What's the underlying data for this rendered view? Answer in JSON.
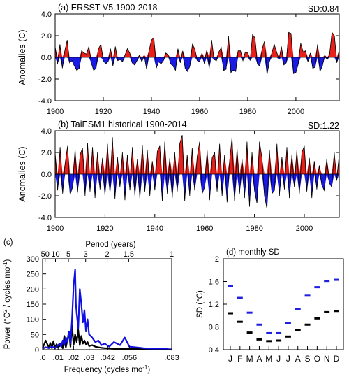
{
  "chart_data": [
    {
      "type": "area",
      "panel": "(a) ERSST-V5 1900-2018",
      "title": "(a) ERSST-V5 1900-2018",
      "sd_label": "SD:0.84",
      "ylabel": "Anomalies (C)",
      "xlim": [
        1900,
        2018
      ],
      "ylim": [
        -4.0,
        4.0
      ],
      "xticks": [
        "1900",
        "1920",
        "1940",
        "1960",
        "1980",
        "2000"
      ],
      "yticks": [
        "-4.0",
        "-2.0",
        "0.0",
        "2.0",
        "4.0"
      ],
      "series": [
        {
          "x": [
            1900,
            1901,
            1902,
            1903,
            1904,
            1905,
            1906,
            1907,
            1908,
            1909,
            1910,
            1911,
            1912,
            1913,
            1914,
            1915,
            1916,
            1917,
            1918,
            1919,
            1920,
            1921,
            1922,
            1923,
            1924,
            1925,
            1926,
            1927,
            1928,
            1929,
            1930,
            1931,
            1932,
            1933,
            1934,
            1935,
            1936,
            1937,
            1938,
            1939,
            1940,
            1941,
            1942,
            1943,
            1944,
            1945,
            1946,
            1947,
            1948,
            1949,
            1950,
            1951,
            1952,
            1953,
            1954,
            1955,
            1956,
            1957,
            1958,
            1959,
            1960,
            1961,
            1962,
            1963,
            1964,
            1965,
            1966,
            1967,
            1968,
            1969,
            1970,
            1971,
            1972,
            1973,
            1974,
            1975,
            1976,
            1977,
            1978,
            1979,
            1980,
            1981,
            1982,
            1983,
            1984,
            1985,
            1986,
            1987,
            1988,
            1989,
            1990,
            1991,
            1992,
            1993,
            1994,
            1995,
            1996,
            1997,
            1998,
            1999,
            2000,
            2001,
            2002,
            2003,
            2004,
            2005,
            2006,
            2007,
            2008,
            2009,
            2010,
            2011,
            2012,
            2013,
            2014,
            2015,
            2016,
            2017,
            2018
          ],
          "values": [
            1.0,
            -0.6,
            1.2,
            -1.0,
            0.6,
            1.6,
            -0.5,
            -0.3,
            -0.8,
            -1.2,
            -1.0,
            0.6,
            0.4,
            0.3,
            1.0,
            -0.5,
            -1.2,
            -1.0,
            0.8,
            1.2,
            -0.3,
            -0.6,
            -0.4,
            0.8,
            -0.8,
            1.0,
            -0.3,
            -0.2,
            -0.4,
            0.2,
            0.8,
            0.4,
            -0.5,
            -0.7,
            -0.3,
            0.2,
            -0.4,
            0.2,
            -1.1,
            0.6,
            1.6,
            1.8,
            -1.0,
            -0.4,
            -0.6,
            -0.3,
            0.4,
            0.2,
            -0.6,
            -0.8,
            -1.2,
            0.8,
            -0.5,
            0.6,
            -1.0,
            -1.3,
            -0.8,
            1.2,
            0.8,
            -0.3,
            -0.4,
            0.4,
            -0.6,
            0.7,
            -1.0,
            1.6,
            -0.2,
            -0.3,
            0.5,
            0.9,
            -1.2,
            -1.1,
            2.0,
            -1.4,
            -1.2,
            -1.3,
            0.6,
            0.6,
            -0.3,
            0.5,
            0.4,
            -0.3,
            2.1,
            1.8,
            -0.6,
            -0.8,
            0.8,
            1.5,
            -1.6,
            -0.4,
            0.4,
            1.2,
            0.5,
            -0.2,
            1.0,
            -0.7,
            -0.5,
            2.3,
            2.2,
            -1.5,
            -1.4,
            -0.6,
            1.3,
            0.5,
            0.6,
            -0.4,
            0.4,
            -1.0,
            -0.9,
            1.2,
            -1.3,
            -0.8,
            0.2,
            -0.2,
            0.3,
            2.3,
            2.0,
            -0.5,
            0.7
          ]
        }
      ]
    },
    {
      "type": "area",
      "panel": "(b) TaiESM1 historical 1900-2014",
      "title": "(b) TaiESM1 historical 1900-2014",
      "sd_label": "SD:1.22",
      "ylabel": "Anomalies (C)",
      "xlim": [
        1900,
        2014
      ],
      "ylim": [
        -4.0,
        4.0
      ],
      "xticks": [
        "1900",
        "1920",
        "1940",
        "1960",
        "1980",
        "2000"
      ],
      "yticks": [
        "-4.0",
        "-2.0",
        "0.0",
        "2.0",
        "4.0"
      ],
      "series": [
        {
          "x": [
            1900,
            1901,
            1902,
            1903,
            1904,
            1905,
            1906,
            1907,
            1908,
            1909,
            1910,
            1911,
            1912,
            1913,
            1914,
            1915,
            1916,
            1917,
            1918,
            1919,
            1920,
            1921,
            1922,
            1923,
            1924,
            1925,
            1926,
            1927,
            1928,
            1929,
            1930,
            1931,
            1932,
            1933,
            1934,
            1935,
            1936,
            1937,
            1938,
            1939,
            1940,
            1941,
            1942,
            1943,
            1944,
            1945,
            1946,
            1947,
            1948,
            1949,
            1950,
            1951,
            1952,
            1953,
            1954,
            1955,
            1956,
            1957,
            1958,
            1959,
            1960,
            1961,
            1962,
            1963,
            1964,
            1965,
            1966,
            1967,
            1968,
            1969,
            1970,
            1971,
            1972,
            1973,
            1974,
            1975,
            1976,
            1977,
            1978,
            1979,
            1980,
            1981,
            1982,
            1983,
            1984,
            1985,
            1986,
            1987,
            1988,
            1989,
            1990,
            1991,
            1992,
            1993,
            1994,
            1995,
            1996,
            1997,
            1998,
            1999,
            2000,
            2001,
            2002,
            2003,
            2004,
            2005,
            2006,
            2007,
            2008,
            2009,
            2010,
            2011,
            2012,
            2013,
            2014
          ],
          "values": [
            2.0,
            -1.5,
            2.5,
            -1.8,
            1.0,
            2.6,
            -1.9,
            -1.2,
            2.3,
            -1.7,
            1.8,
            2.4,
            -2.0,
            2.9,
            -1.6,
            2.5,
            -2.2,
            2.0,
            -1.4,
            1.5,
            -2.0,
            2.8,
            -1.8,
            3.4,
            -2.3,
            1.6,
            -1.2,
            2.0,
            -2.4,
            1.8,
            -1.5,
            2.5,
            -2.0,
            1.4,
            -2.3,
            2.7,
            -1.6,
            2.2,
            -2.0,
            1.2,
            -1.5,
            2.1,
            2.6,
            -2.5,
            3.0,
            -1.8,
            1.5,
            -2.2,
            2.0,
            -1.6,
            2.8,
            3.6,
            -2.5,
            1.8,
            -2.0,
            2.4,
            -1.5,
            1.6,
            3.0,
            -1.8,
            -1.2,
            2.2,
            -2.4,
            1.5,
            2.0,
            -1.6,
            2.8,
            -2.0,
            1.8,
            -2.6,
            1.2,
            3.4,
            -2.5,
            2.4,
            -1.8,
            1.4,
            -2.2,
            3.0,
            -3.0,
            2.0,
            -1.5,
            -2.7,
            3.0,
            1.5,
            -2.0,
            -3.2,
            2.2,
            -1.8,
            -1.5,
            2.8,
            -2.0,
            1.6,
            -1.4,
            2.5,
            -2.2,
            1.8,
            -1.2,
            2.2,
            -1.8,
            2.0,
            2.6,
            -1.6,
            1.5,
            -2.2,
            1.2,
            -1.4,
            0.8,
            -1.0,
            -1.5,
            1.4,
            -0.8,
            -1.2,
            2.0,
            -0.6,
            1.8
          ]
        }
      ]
    },
    {
      "type": "line",
      "panel": "(c)",
      "title": "(c)",
      "xlabel": "Frequency (cycles mo",
      "xlabel_sup": "-1",
      "xlabel_end": ")",
      "ylabel_parts": [
        "Power (",
        "°C",
        "2",
        " / cycles mo",
        "-1",
        ")"
      ],
      "top_axis_label": "Period (years)",
      "top_ticks": [
        "50",
        "10",
        "5",
        "3",
        "2",
        "1.5",
        "1"
      ],
      "top_tick_freq": [
        0.00167,
        0.00833,
        0.01667,
        0.02778,
        0.04167,
        0.05556,
        0.08333
      ],
      "xlim": [
        0,
        0.0833
      ],
      "ylim": [
        0,
        300
      ],
      "xticks": [
        ".0",
        ".01",
        ".02",
        ".03",
        ".042",
        ".056",
        ".083"
      ],
      "xtick_values": [
        0.0,
        0.01,
        0.02,
        0.03,
        0.042,
        0.056,
        0.0833
      ],
      "yticks": [
        "0",
        "50",
        "100",
        "150",
        "200",
        "250",
        "300"
      ],
      "series": [
        {
          "color": "#000000",
          "x": [
            0.0,
            0.002,
            0.004,
            0.005,
            0.006,
            0.007,
            0.008,
            0.009,
            0.01,
            0.011,
            0.012,
            0.013,
            0.014,
            0.015,
            0.016,
            0.017,
            0.018,
            0.019,
            0.02,
            0.021,
            0.022,
            0.023,
            0.024,
            0.025,
            0.026,
            0.027,
            0.028,
            0.029,
            0.03,
            0.032,
            0.034,
            0.036,
            0.038,
            0.04,
            0.045,
            0.05,
            0.055,
            0.06,
            0.065,
            0.07,
            0.075,
            0.08,
            0.0833
          ],
          "values": [
            5,
            30,
            8,
            22,
            5,
            28,
            4,
            18,
            8,
            12,
            20,
            5,
            45,
            8,
            30,
            60,
            10,
            80,
            15,
            50,
            25,
            65,
            15,
            45,
            20,
            30,
            18,
            25,
            12,
            15,
            10,
            8,
            6,
            5,
            4,
            3,
            3,
            2,
            2,
            1,
            1,
            1,
            0
          ]
        },
        {
          "color": "#1010e0",
          "x": [
            0.0,
            0.002,
            0.004,
            0.006,
            0.008,
            0.01,
            0.011,
            0.012,
            0.013,
            0.014,
            0.015,
            0.016,
            0.017,
            0.018,
            0.019,
            0.02,
            0.021,
            0.0215,
            0.022,
            0.023,
            0.024,
            0.025,
            0.026,
            0.027,
            0.028,
            0.029,
            0.03,
            0.032,
            0.034,
            0.036,
            0.038,
            0.04,
            0.043,
            0.046,
            0.05,
            0.053,
            0.056,
            0.06,
            0.065,
            0.07,
            0.075,
            0.08,
            0.0833
          ],
          "values": [
            3,
            8,
            5,
            10,
            6,
            15,
            20,
            10,
            30,
            15,
            40,
            25,
            60,
            20,
            100,
            210,
            265,
            150,
            120,
            70,
            200,
            150,
            90,
            130,
            60,
            100,
            50,
            40,
            25,
            30,
            15,
            20,
            10,
            25,
            15,
            40,
            10,
            8,
            5,
            3,
            2,
            2,
            1
          ]
        }
      ]
    },
    {
      "type": "scatter",
      "panel": "(d) monthly SD",
      "title": "(d) monthly SD",
      "ylabel": "SD (°C)",
      "ylim": [
        0.4,
        2.0
      ],
      "yticks": [
        "0.4",
        "0.8",
        "1.2",
        "1.6",
        "2"
      ],
      "categories": [
        "J",
        "F",
        "M",
        "A",
        "M",
        "J",
        "J",
        "A",
        "S",
        "O",
        "N",
        "D"
      ],
      "series": [
        {
          "color": "#000000",
          "values": [
            1.04,
            0.89,
            0.7,
            0.58,
            0.55,
            0.56,
            0.63,
            0.74,
            0.84,
            0.95,
            1.06,
            1.08
          ]
        },
        {
          "color": "#1f1fe0",
          "values": [
            1.52,
            1.31,
            1.05,
            0.84,
            0.69,
            0.69,
            0.87,
            1.12,
            1.35,
            1.5,
            1.61,
            1.63
          ]
        }
      ]
    }
  ]
}
